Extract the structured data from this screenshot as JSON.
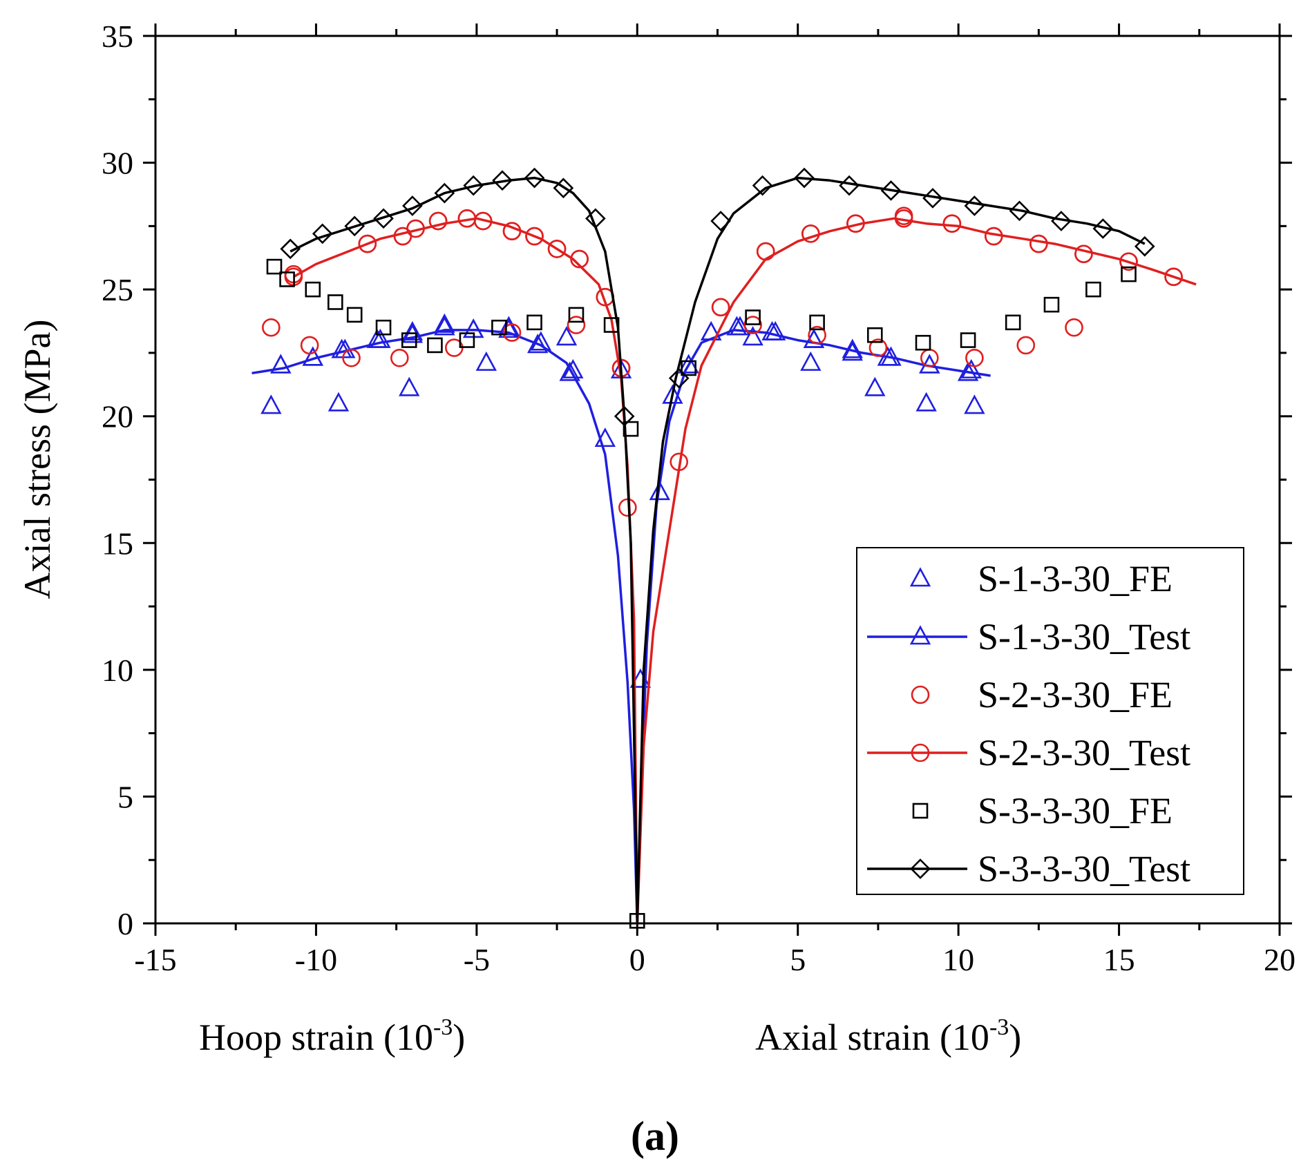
{
  "chart_data": {
    "type": "scatter",
    "title": "",
    "xlabel_left": "Hoop strain (10",
    "xlabel_right": "Axial strain (10",
    "xlabel_exponent": "-3",
    "xlabel_close": ")",
    "ylabel": "Axial stress (MPa)",
    "panel_label": "(a)",
    "xlim": [
      -15,
      20
    ],
    "ylim": [
      0,
      35
    ],
    "xticks": [
      -15,
      -10,
      -5,
      0,
      5,
      10,
      15,
      20
    ],
    "yticks": [
      0,
      5,
      10,
      15,
      20,
      25,
      30,
      35
    ],
    "legend_position": "bottom-right",
    "series": [
      {
        "name": "S-1-3-30_FE",
        "style": "markers",
        "marker": "triangle",
        "color": "#1f1fe0",
        "points": [
          [
            -11.4,
            20.4
          ],
          [
            -11.1,
            22
          ],
          [
            -10.1,
            22.3
          ],
          [
            -9.3,
            20.5
          ],
          [
            -9.2,
            22.6
          ],
          [
            -8.1,
            23
          ],
          [
            -7.1,
            21.1
          ],
          [
            -7.0,
            23.3
          ],
          [
            -6.0,
            23.6
          ],
          [
            -5.1,
            23.4
          ],
          [
            -4.7,
            22.1
          ],
          [
            -4.0,
            23.5
          ],
          [
            -3.1,
            22.8
          ],
          [
            -2.2,
            23.1
          ],
          [
            -2.1,
            21.7
          ],
          [
            -1.0,
            19.1
          ],
          [
            -0.5,
            21.8
          ],
          [
            0.1,
            9.6
          ],
          [
            0.7,
            17
          ],
          [
            1.1,
            20.8
          ],
          [
            1.6,
            22
          ],
          [
            2.3,
            23.3
          ],
          [
            3.2,
            23.5
          ],
          [
            3.6,
            23.1
          ],
          [
            4.3,
            23.3
          ],
          [
            5.4,
            22.1
          ],
          [
            5.5,
            23
          ],
          [
            6.7,
            22.5
          ],
          [
            7.4,
            21.1
          ],
          [
            7.9,
            22.3
          ],
          [
            9.0,
            20.5
          ],
          [
            9.1,
            22
          ],
          [
            10.4,
            21.8
          ],
          [
            10.5,
            20.4
          ]
        ]
      },
      {
        "name": "S-1-3-30_Test",
        "style": "line",
        "marker": "triangle",
        "color": "#1f1fe0",
        "points": [
          [
            -12.0,
            21.7
          ],
          [
            -11.0,
            21.9
          ],
          [
            -10.0,
            22.3
          ],
          [
            -9.0,
            22.6
          ],
          [
            -8.0,
            22.9
          ],
          [
            -7.0,
            23.1
          ],
          [
            -6.0,
            23.4
          ],
          [
            -5.0,
            23.4
          ],
          [
            -4.0,
            23.3
          ],
          [
            -3.0,
            22.8
          ],
          [
            -2.2,
            22.1
          ],
          [
            -1.5,
            20.5
          ],
          [
            -1.0,
            18.5
          ],
          [
            -0.6,
            14.5
          ],
          [
            -0.3,
            9.5
          ],
          [
            -0.1,
            4.5
          ],
          [
            0,
            0
          ],
          [
            0.1,
            4.5
          ],
          [
            0.3,
            11
          ],
          [
            0.6,
            16.5
          ],
          [
            1.0,
            19.8
          ],
          [
            1.5,
            21.8
          ],
          [
            2.0,
            22.9
          ],
          [
            3.0,
            23.4
          ],
          [
            4.0,
            23.3
          ],
          [
            5.0,
            23.0
          ],
          [
            6.0,
            22.8
          ],
          [
            7.0,
            22.5
          ],
          [
            8.0,
            22.3
          ],
          [
            9.0,
            22.0
          ],
          [
            10.0,
            21.8
          ],
          [
            11.0,
            21.6
          ]
        ]
      },
      {
        "name": "S-2-3-30_FE",
        "style": "markers",
        "marker": "circle",
        "color": "#e01f1f",
        "points": [
          [
            -11.4,
            23.5
          ],
          [
            -10.7,
            25.6
          ],
          [
            -10.2,
            22.8
          ],
          [
            -8.9,
            22.3
          ],
          [
            -8.4,
            26.8
          ],
          [
            -7.4,
            22.3
          ],
          [
            -7.3,
            27.1
          ],
          [
            -6.9,
            27.4
          ],
          [
            -6.2,
            27.7
          ],
          [
            -5.7,
            22.7
          ],
          [
            -5.3,
            27.8
          ],
          [
            -4.8,
            27.7
          ],
          [
            -3.9,
            23.3
          ],
          [
            -3.9,
            27.3
          ],
          [
            -3.2,
            27.1
          ],
          [
            -2.5,
            26.6
          ],
          [
            -1.9,
            23.6
          ],
          [
            -1.8,
            26.2
          ],
          [
            -1.0,
            24.7
          ],
          [
            -0.5,
            21.9
          ],
          [
            -0.3,
            16.4
          ],
          [
            1.3,
            18.2
          ],
          [
            2.6,
            24.3
          ],
          [
            3.6,
            23.6
          ],
          [
            4.0,
            26.5
          ],
          [
            5.4,
            27.2
          ],
          [
            5.6,
            23.2
          ],
          [
            6.8,
            27.6
          ],
          [
            7.5,
            22.7
          ],
          [
            8.3,
            27.9
          ],
          [
            9.1,
            22.3
          ],
          [
            9.8,
            27.6
          ],
          [
            10.5,
            22.3
          ],
          [
            11.1,
            27.1
          ],
          [
            12.1,
            22.8
          ],
          [
            12.5,
            26.8
          ],
          [
            13.6,
            23.5
          ],
          [
            13.9,
            26.4
          ],
          [
            15.3,
            26.1
          ],
          [
            16.7,
            25.5
          ]
        ]
      },
      {
        "name": "S-2-3-30_Test",
        "style": "line",
        "marker": "circle",
        "color": "#e01f1f",
        "points": [
          [
            -10.7,
            25.5
          ],
          [
            -10.0,
            26.0
          ],
          [
            -9.0,
            26.5
          ],
          [
            -8.0,
            27.0
          ],
          [
            -7.0,
            27.3
          ],
          [
            -6.0,
            27.6
          ],
          [
            -5.0,
            27.8
          ],
          [
            -4.0,
            27.5
          ],
          [
            -3.0,
            27.0
          ],
          [
            -2.0,
            26.2
          ],
          [
            -1.2,
            25.2
          ],
          [
            -0.8,
            23.8
          ],
          [
            -0.5,
            21.5
          ],
          [
            -0.3,
            18.0
          ],
          [
            -0.1,
            12.0
          ],
          [
            0,
            0
          ],
          [
            0.2,
            7.0
          ],
          [
            0.5,
            11.5
          ],
          [
            1.0,
            15.5
          ],
          [
            1.5,
            19.5
          ],
          [
            2.0,
            22.0
          ],
          [
            3.0,
            24.5
          ],
          [
            4.0,
            26.2
          ],
          [
            5.0,
            26.9
          ],
          [
            6.0,
            27.3
          ],
          [
            7.0,
            27.6
          ],
          [
            8.0,
            27.8
          ],
          [
            9.0,
            27.6
          ],
          [
            10.0,
            27.5
          ],
          [
            11.0,
            27.2
          ],
          [
            12.0,
            27.0
          ],
          [
            13.0,
            26.8
          ],
          [
            14.0,
            26.5
          ],
          [
            15.0,
            26.2
          ],
          [
            16.0,
            25.8
          ],
          [
            17.4,
            25.2
          ]
        ]
      },
      {
        "name": "S-3-3-30_FE",
        "style": "markers",
        "marker": "square",
        "color": "#000000",
        "points": [
          [
            -11.3,
            25.9
          ],
          [
            -10.9,
            25.4
          ],
          [
            -10.1,
            25.0
          ],
          [
            -9.4,
            24.5
          ],
          [
            -8.8,
            24.0
          ],
          [
            -7.9,
            23.5
          ],
          [
            -7.1,
            23.0
          ],
          [
            -6.3,
            22.8
          ],
          [
            -5.3,
            23.0
          ],
          [
            -4.3,
            23.5
          ],
          [
            -3.2,
            23.7
          ],
          [
            -1.9,
            24.0
          ],
          [
            -0.8,
            23.6
          ],
          [
            -0.2,
            19.5
          ],
          [
            0,
            0.1
          ],
          [
            1.6,
            21.9
          ],
          [
            3.6,
            23.9
          ],
          [
            5.6,
            23.7
          ],
          [
            7.4,
            23.2
          ],
          [
            8.9,
            22.9
          ],
          [
            10.3,
            23.0
          ],
          [
            11.7,
            23.7
          ],
          [
            12.9,
            24.4
          ],
          [
            14.2,
            25.0
          ],
          [
            15.3,
            25.6
          ]
        ]
      },
      {
        "name": "S-3-3-30_Test",
        "style": "line",
        "marker": "diamond",
        "color": "#000000",
        "points": [
          [
            -10.8,
            26.5
          ],
          [
            -10.0,
            27.0
          ],
          [
            -9.0,
            27.4
          ],
          [
            -8.0,
            27.8
          ],
          [
            -7.0,
            28.2
          ],
          [
            -6.0,
            28.8
          ],
          [
            -5.0,
            29.1
          ],
          [
            -4.0,
            29.3
          ],
          [
            -3.2,
            29.4
          ],
          [
            -2.5,
            29.2
          ],
          [
            -2.0,
            28.8
          ],
          [
            -1.5,
            28.1
          ],
          [
            -1.0,
            26.5
          ],
          [
            -0.6,
            23.5
          ],
          [
            -0.4,
            20.0
          ],
          [
            -0.2,
            15.0
          ],
          [
            0,
            0
          ],
          [
            0.2,
            10.0
          ],
          [
            0.5,
            15.5
          ],
          [
            0.8,
            19.0
          ],
          [
            1.2,
            21.5
          ],
          [
            1.8,
            24.5
          ],
          [
            2.5,
            27.0
          ],
          [
            3.0,
            28.0
          ],
          [
            4.0,
            29.0
          ],
          [
            5.0,
            29.4
          ],
          [
            6.0,
            29.3
          ],
          [
            7.0,
            29.1
          ],
          [
            8.0,
            28.9
          ],
          [
            9.0,
            28.7
          ],
          [
            10.0,
            28.5
          ],
          [
            11.0,
            28.3
          ],
          [
            12.0,
            28.1
          ],
          [
            13.0,
            27.8
          ],
          [
            14.0,
            27.6
          ],
          [
            15.0,
            27.3
          ],
          [
            15.8,
            26.8
          ]
        ]
      }
    ],
    "series_marker_points": {
      "S-1-3-30_Test": [
        [
          -11.1,
          22.0
        ],
        [
          -10.1,
          22.3
        ],
        [
          -9.1,
          22.6
        ],
        [
          -8.0,
          23.0
        ],
        [
          -7.0,
          23.2
        ],
        [
          -6.0,
          23.5
        ],
        [
          -5.1,
          23.4
        ],
        [
          -4.0,
          23.4
        ],
        [
          -3.0,
          22.9
        ],
        [
          -2.0,
          21.8
        ],
        [
          2.3,
          23.3
        ],
        [
          3.1,
          23.5
        ],
        [
          4.2,
          23.3
        ],
        [
          5.5,
          23.0
        ],
        [
          6.7,
          22.6
        ],
        [
          7.8,
          22.3
        ],
        [
          9.1,
          22.0
        ],
        [
          10.3,
          21.7
        ]
      ],
      "S-2-3-30_Test": [
        [
          -10.7,
          25.5
        ],
        [
          -8.4,
          26.8
        ],
        [
          -7.3,
          27.1
        ],
        [
          -6.9,
          27.4
        ],
        [
          -6.2,
          27.7
        ],
        [
          -5.3,
          27.8
        ],
        [
          -4.8,
          27.7
        ],
        [
          -3.9,
          27.3
        ],
        [
          -3.2,
          27.1
        ],
        [
          -2.5,
          26.6
        ],
        [
          -1.8,
          26.2
        ],
        [
          -1.0,
          24.7
        ],
        [
          -0.5,
          21.9
        ],
        [
          2.6,
          24.3
        ],
        [
          4.0,
          26.5
        ],
        [
          5.4,
          27.2
        ],
        [
          6.8,
          27.6
        ],
        [
          8.3,
          27.8
        ],
        [
          9.8,
          27.6
        ],
        [
          11.1,
          27.1
        ],
        [
          12.5,
          26.8
        ],
        [
          13.9,
          26.4
        ],
        [
          15.3,
          26.1
        ],
        [
          16.7,
          25.5
        ]
      ],
      "S-3-3-30_Test": [
        [
          -10.8,
          26.6
        ],
        [
          -9.8,
          27.2
        ],
        [
          -8.8,
          27.5
        ],
        [
          -7.9,
          27.8
        ],
        [
          -7.0,
          28.3
        ],
        [
          -6.0,
          28.8
        ],
        [
          -5.1,
          29.1
        ],
        [
          -4.2,
          29.3
        ],
        [
          -3.2,
          29.4
        ],
        [
          -2.3,
          29.0
        ],
        [
          -1.3,
          27.8
        ],
        [
          -0.4,
          20.0
        ],
        [
          1.3,
          21.5
        ],
        [
          2.6,
          27.7
        ],
        [
          3.9,
          29.1
        ],
        [
          5.2,
          29.4
        ],
        [
          6.6,
          29.1
        ],
        [
          7.9,
          28.9
        ],
        [
          9.2,
          28.6
        ],
        [
          10.5,
          28.3
        ],
        [
          11.9,
          28.1
        ],
        [
          13.2,
          27.7
        ],
        [
          14.5,
          27.4
        ],
        [
          15.8,
          26.7
        ]
      ]
    }
  }
}
